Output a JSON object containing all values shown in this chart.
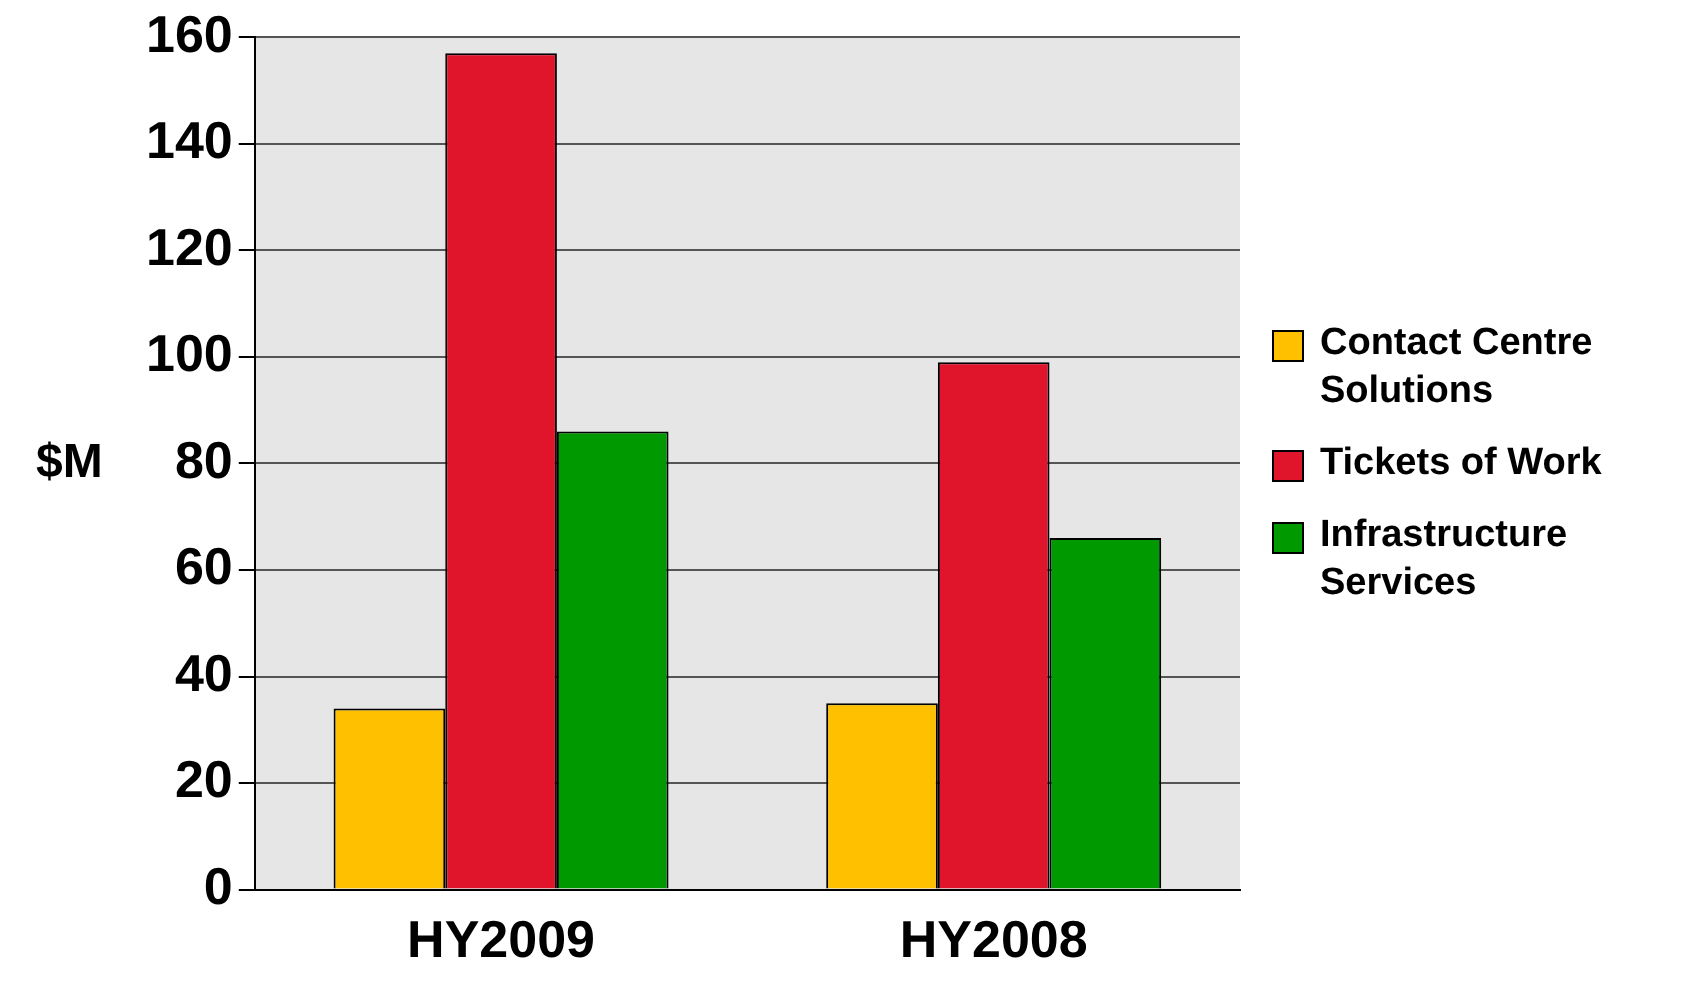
{
  "chart_data": {
    "type": "bar",
    "ylabel": "$M",
    "categories": [
      "HY2009",
      "HY2008"
    ],
    "series": [
      {
        "name": "Contact Centre Solutions",
        "color": "#ffc000",
        "values": [
          34,
          35
        ]
      },
      {
        "name": "Tickets of Work",
        "color": "#e0142a",
        "values": [
          157,
          99
        ]
      },
      {
        "name": "Infrastructure Services",
        "color": "#009900",
        "values": [
          86,
          66
        ]
      }
    ],
    "ylim": [
      0,
      160
    ],
    "yticks": [
      0,
      20,
      40,
      60,
      80,
      100,
      120,
      140,
      160
    ],
    "grid": "y",
    "legend": "right"
  }
}
